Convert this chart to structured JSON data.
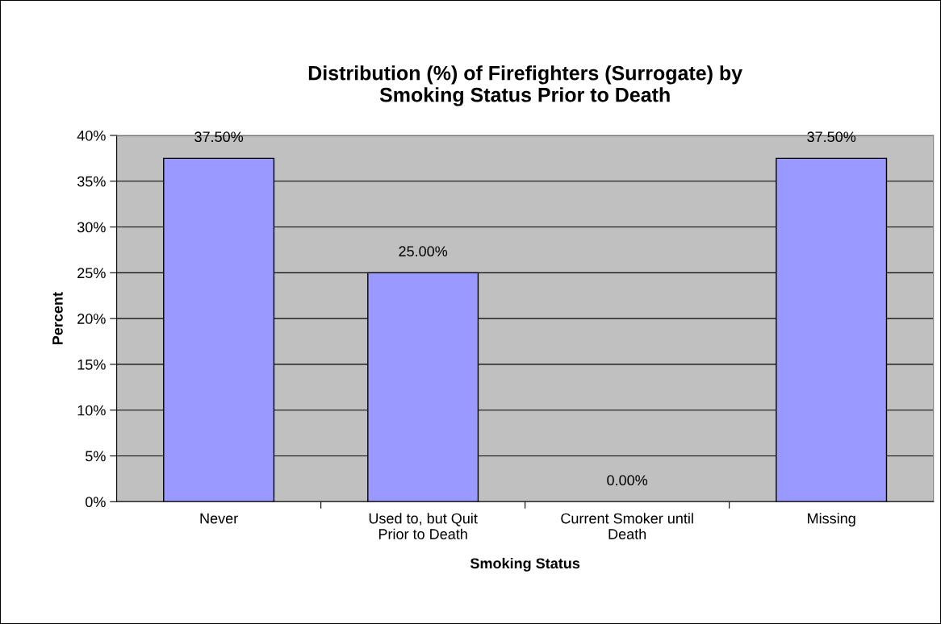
{
  "chart_data": {
    "type": "bar",
    "title": "Distribution (%) of Firefighters (Surrogate) by\nSmoking Status Prior to Death",
    "xlabel": "Smoking Status",
    "ylabel": "Percent",
    "categories": [
      "Never",
      "Used to, but Quit\nPrior to Death",
      "Current Smoker until\nDeath",
      "Missing"
    ],
    "values": [
      37.5,
      25,
      0,
      37.5
    ],
    "color": "#9999ff",
    "value_labels": [
      "37.50%",
      "25.00%",
      "0.00%",
      "37.50%"
    ],
    "ylim": [
      0,
      40
    ],
    "yticks": [
      {
        "value": 0,
        "label": "0%"
      },
      {
        "value": 5,
        "label": "5%"
      },
      {
        "value": 10,
        "label": "10%"
      },
      {
        "value": 15,
        "label": "15%"
      },
      {
        "value": 20,
        "label": "20%"
      },
      {
        "value": 25,
        "label": "25%"
      },
      {
        "value": 30,
        "label": "30%"
      },
      {
        "value": 35,
        "label": "35%"
      },
      {
        "value": 40,
        "label": "40%"
      }
    ],
    "grid": "y"
  }
}
